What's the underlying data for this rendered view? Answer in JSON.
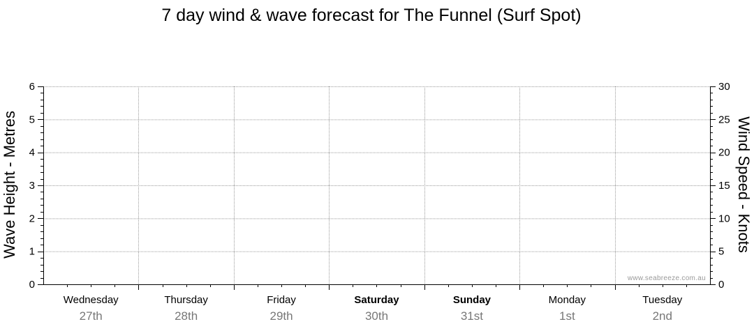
{
  "chart_data": {
    "type": "line",
    "title": "7 day wind & wave forecast for The Funnel (Surf Spot)",
    "ylabel_left": "Wave Height - Metres",
    "ylabel_right": "Wind Speed - Knots",
    "ylim_left": [
      0,
      6
    ],
    "ylim_right": [
      0,
      30
    ],
    "yticks_left": [
      "0",
      "1",
      "2",
      "3",
      "4",
      "5",
      "6"
    ],
    "yticks_right": [
      "0",
      "5",
      "10",
      "15",
      "20",
      "25",
      "30"
    ],
    "grid": true,
    "days": [
      {
        "name": "Wednesday",
        "date": "27th",
        "bold": false
      },
      {
        "name": "Thursday",
        "date": "28th",
        "bold": false
      },
      {
        "name": "Friday",
        "date": "29th",
        "bold": false
      },
      {
        "name": "Saturday",
        "date": "30th",
        "bold": true
      },
      {
        "name": "Sunday",
        "date": "31st",
        "bold": true
      },
      {
        "name": "Monday",
        "date": "1st",
        "bold": false
      },
      {
        "name": "Tuesday",
        "date": "2nd",
        "bold": false
      }
    ],
    "series": []
  },
  "watermark": "www.seabreeze.com.au",
  "colors": {
    "grid": "#9a9a9a",
    "axis": "#000000",
    "date_text": "#777777",
    "watermark": "#9a9a9a"
  }
}
